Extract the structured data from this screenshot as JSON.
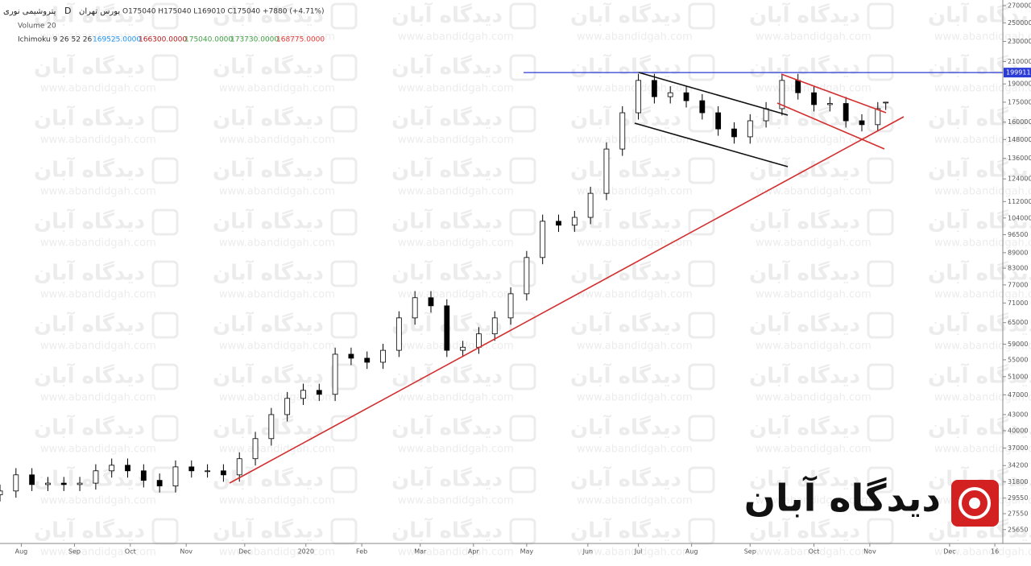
{
  "chart_data": {
    "type": "candlestick",
    "symbol": "پتروشیمی نوری",
    "interval": "D",
    "exchange": "بورس تهران",
    "ohlc_header": "O175040 H175040 L169010 C175040 +7880 (+4.71%)",
    "volume_label": "Volume 20",
    "ichimoku_label": "Ichimoku 9 26 52 26",
    "ichimoku_values": [
      {
        "text": "169525.0000",
        "color": "#2196f3"
      },
      {
        "text": "166300.0000",
        "color": "#b71c1c"
      },
      {
        "text": "175040.0000",
        "color": "#43a047"
      },
      {
        "text": "173730.0000",
        "color": "#43a047"
      },
      {
        "text": "168775.0000",
        "color": "#e53935"
      }
    ],
    "x": [
      0,
      6,
      12,
      18,
      24,
      30,
      36,
      42,
      48,
      54,
      60,
      66,
      72,
      78,
      84,
      90,
      96,
      102,
      108,
      114,
      120,
      126,
      132,
      138,
      144,
      150,
      156,
      162,
      168,
      174,
      180,
      186,
      192,
      198,
      204,
      210,
      216,
      222,
      228,
      234,
      240,
      246,
      252,
      258,
      264,
      270,
      276,
      282,
      288,
      294,
      300,
      306,
      312,
      318,
      324,
      330,
      333
    ],
    "open": [
      30000,
      30510,
      32800,
      31400,
      31600,
      31400,
      31600,
      33400,
      34250,
      33400,
      32000,
      31200,
      34000,
      33400,
      33400,
      32800,
      35270,
      38600,
      43000,
      46250,
      47950,
      47100,
      56400,
      55400,
      54400,
      57400,
      66400,
      72700,
      70100,
      57400,
      58200,
      61800,
      66400,
      74000,
      87100,
      102500,
      100700,
      104300,
      116200,
      141800,
      166900,
      193000,
      179400,
      182600,
      176200,
      166900,
      155200,
      149800,
      161000,
      170000,
      193000,
      182600,
      173100,
      174000,
      161000,
      158200,
      175040
    ],
    "high": [
      31400,
      33800,
      33800,
      32500,
      32500,
      32500,
      34400,
      35300,
      35300,
      34400,
      33000,
      35000,
      35000,
      34400,
      34400,
      36300,
      39800,
      44300,
      47600,
      49400,
      49400,
      58100,
      58100,
      57100,
      59100,
      68400,
      74900,
      74900,
      72200,
      59900,
      63700,
      68400,
      76200,
      89700,
      105600,
      105600,
      107400,
      119700,
      146100,
      171900,
      198800,
      198800,
      188100,
      188100,
      181500,
      171900,
      159900,
      165800,
      175100,
      198800,
      198800,
      188100,
      179200,
      179200,
      165800,
      175100,
      175040
    ],
    "low": [
      29100,
      29600,
      30500,
      30500,
      30500,
      30500,
      30700,
      32400,
      32400,
      31000,
      30300,
      30300,
      32400,
      32400,
      31800,
      31800,
      34200,
      37400,
      41700,
      44900,
      45700,
      45700,
      53700,
      52800,
      52800,
      55700,
      64400,
      68000,
      55700,
      55700,
      56500,
      59900,
      64400,
      71800,
      84500,
      97700,
      97700,
      101200,
      112700,
      137500,
      161900,
      174000,
      174000,
      170900,
      161900,
      150500,
      145300,
      145300,
      156200,
      164900,
      177100,
      167900,
      167900,
      156200,
      153500,
      153500,
      169010
    ],
    "close": [
      30510,
      32800,
      31400,
      31600,
      31400,
      31600,
      33400,
      34250,
      33400,
      32000,
      31200,
      34000,
      33400,
      33400,
      32800,
      35270,
      38600,
      43000,
      46250,
      47950,
      47100,
      56400,
      55400,
      54400,
      57400,
      66400,
      72700,
      70100,
      57400,
      58200,
      61800,
      66400,
      74000,
      87100,
      102500,
      100700,
      104300,
      116200,
      141800,
      166900,
      193000,
      179400,
      182600,
      176200,
      166900,
      155200,
      149800,
      161000,
      170000,
      193000,
      182600,
      173100,
      174000,
      161000,
      158200,
      170000,
      175040
    ],
    "up_color": "#ffffff",
    "down_color": "#000000",
    "log_scale": true,
    "xlim": [
      0,
      377
    ],
    "xticks": [
      {
        "value": 8,
        "label": "Aug"
      },
      {
        "value": 28,
        "label": "Sep"
      },
      {
        "value": 49,
        "label": "Oct"
      },
      {
        "value": 70,
        "label": "Nov"
      },
      {
        "value": 92,
        "label": "Dec"
      },
      {
        "value": 115,
        "label": "2020"
      },
      {
        "value": 136,
        "label": "Feb"
      },
      {
        "value": 158,
        "label": "Mar"
      },
      {
        "value": 178,
        "label": "Apr"
      },
      {
        "value": 198,
        "label": "May"
      },
      {
        "value": 221,
        "label": "Jun"
      },
      {
        "value": 240,
        "label": "Jul"
      },
      {
        "value": 260,
        "label": "Aug"
      },
      {
        "value": 282,
        "label": "Sep"
      },
      {
        "value": 306,
        "label": "Oct"
      },
      {
        "value": 327,
        "label": "Nov"
      },
      {
        "value": 357,
        "label": "Dec"
      },
      {
        "value": 374,
        "label": "16"
      }
    ],
    "ylim": [
      24100,
      277000
    ],
    "yticks": [
      270000,
      250000,
      230000,
      210000,
      190000,
      175000,
      160000,
      148000,
      136000,
      124000,
      112000,
      104000,
      96500,
      89000,
      83000,
      77000,
      71000,
      65000,
      59000,
      55000,
      51000,
      47000,
      43000,
      40000,
      37000,
      34200,
      31800,
      29550,
      27550,
      25650
    ],
    "reference_line": {
      "value": 199911,
      "color": "#2b3bd6"
    }
  },
  "watermark": {
    "brand": "دیدگاه آبان",
    "url": "www.abandidgah.com"
  }
}
